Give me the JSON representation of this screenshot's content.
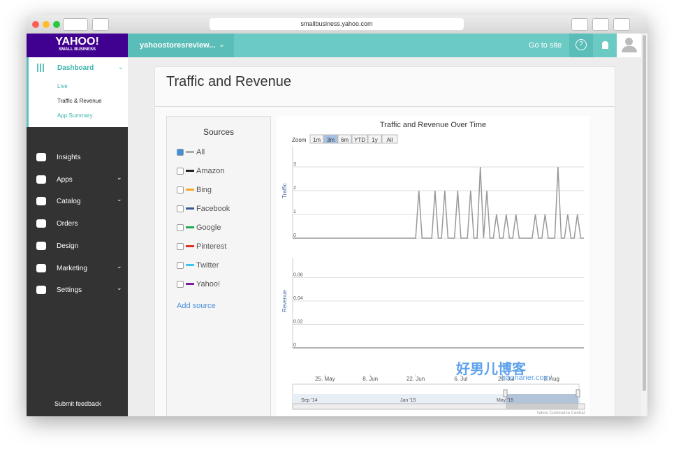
{
  "browser": {
    "url": "smallbusiness.yahoo.com"
  },
  "sidebar": {
    "logo": "YAHOO!",
    "logo_sub": "SMALL BUSINESS",
    "dashboard": "Dashboard",
    "sub_items": [
      "Live",
      "Traffic & Revenue",
      "App Summary"
    ],
    "items": [
      "Insights",
      "Apps",
      "Catalog",
      "Orders",
      "Design",
      "Marketing",
      "Settings"
    ],
    "feedback": "Submit feedback"
  },
  "topbar": {
    "store": "yahoostoresreview...",
    "go_to_site": "Go to site"
  },
  "page": {
    "title": "Traffic and Revenue"
  },
  "sources": {
    "title": "Sources",
    "add": "Add source",
    "items": [
      {
        "name": "All",
        "color": "#aaaaaa",
        "checked": true
      },
      {
        "name": "Amazon",
        "color": "#222222",
        "checked": false
      },
      {
        "name": "Bing",
        "color": "#f5a623",
        "checked": false
      },
      {
        "name": "Facebook",
        "color": "#3b5998",
        "checked": false
      },
      {
        "name": "Google",
        "color": "#1da851",
        "checked": false
      },
      {
        "name": "Pinterest",
        "color": "#dd3322",
        "checked": false
      },
      {
        "name": "Twitter",
        "color": "#3cc7f0",
        "checked": false
      },
      {
        "name": "Yahoo!",
        "color": "#7b1fa2",
        "checked": false
      }
    ]
  },
  "watermark": {
    "text": "好男儿博客",
    "url": "haonaner.com"
  },
  "chart_data": {
    "type": "line",
    "title": "Traffic and Revenue Over Time",
    "zoom_label": "Zoom",
    "zoom_buttons": [
      "1m",
      "3m",
      "6m",
      "YTD",
      "1y",
      "All"
    ],
    "zoom_selected": "3m",
    "x": [
      0,
      1,
      2,
      3,
      4,
      5,
      6,
      7,
      8,
      9,
      10,
      11,
      12,
      13,
      14,
      15,
      16,
      17,
      18,
      19,
      20,
      21,
      22,
      23,
      24,
      25,
      26,
      27,
      28,
      29,
      30,
      31,
      32,
      33,
      34,
      35,
      36,
      37,
      38,
      39,
      40,
      41,
      42,
      43,
      44,
      45,
      46,
      47,
      48,
      49,
      50,
      51,
      52,
      53,
      54,
      55,
      56,
      57,
      58,
      59,
      60,
      61,
      62,
      63,
      64,
      65,
      66,
      67,
      68,
      69,
      70,
      71,
      72,
      73,
      74,
      75,
      76,
      77,
      78,
      79,
      80,
      81,
      82,
      83,
      84,
      85,
      86,
      87,
      88,
      89,
      90
    ],
    "xlim": [
      0,
      90
    ],
    "xticks": [
      {
        "value": 10,
        "label": "25. May"
      },
      {
        "value": 24,
        "label": "8. Jun"
      },
      {
        "value": 38,
        "label": "22. Jun"
      },
      {
        "value": 52,
        "label": "6. Jul"
      },
      {
        "value": 66,
        "label": "20. Jul"
      },
      {
        "value": 80,
        "label": "3. Aug"
      }
    ],
    "ylim": [
      0,
      4
    ],
    "yticks": [
      0,
      1,
      2,
      3
    ],
    "y2lim": [
      0,
      0.08
    ],
    "y2ticks": [
      0,
      0.02,
      0.04,
      0.06
    ],
    "grid": true,
    "series": [
      {
        "name": "Traffic",
        "color": "#999999",
        "values": [
          0,
          0,
          0,
          0,
          0,
          0,
          0,
          0,
          0,
          0,
          0,
          0,
          0,
          0,
          0,
          0,
          0,
          0,
          0,
          0,
          0,
          0,
          0,
          0,
          0,
          0,
          0,
          0,
          0,
          0,
          0,
          0,
          0,
          0,
          0,
          0,
          0,
          0,
          0,
          2,
          0,
          0,
          0,
          0,
          2,
          0,
          0,
          2,
          0,
          0,
          0,
          2,
          0,
          0,
          0,
          2,
          0,
          0,
          3,
          0,
          2,
          0,
          0,
          1,
          0,
          0,
          1,
          0,
          0,
          1,
          0,
          0,
          0,
          0,
          0,
          1,
          0,
          0,
          1,
          0,
          0,
          0,
          3,
          0,
          0,
          1,
          0,
          0,
          1,
          0,
          0
        ]
      },
      {
        "name": "Revenue",
        "color": "#999999",
        "axis": "y2",
        "values": [
          0,
          0,
          0,
          0,
          0,
          0,
          0,
          0,
          0,
          0,
          0,
          0,
          0,
          0,
          0,
          0,
          0,
          0,
          0,
          0,
          0,
          0,
          0,
          0,
          0,
          0,
          0,
          0,
          0,
          0,
          0,
          0,
          0,
          0,
          0,
          0,
          0,
          0,
          0,
          0,
          0,
          0,
          0,
          0,
          0,
          0,
          0,
          0,
          0,
          0,
          0,
          0,
          0,
          0,
          0,
          0,
          0,
          0,
          0,
          0,
          0,
          0,
          0,
          0,
          0,
          0,
          0,
          0,
          0,
          0,
          0,
          0,
          0,
          0,
          0,
          0,
          0,
          0,
          0,
          0,
          0,
          0,
          0,
          0,
          0,
          0,
          0,
          0,
          0,
          0,
          0
        ]
      }
    ],
    "navigator_labels": [
      "Sep '14",
      "Jan '15",
      "May '15"
    ],
    "credit": "Yahoo Commerce Central"
  }
}
